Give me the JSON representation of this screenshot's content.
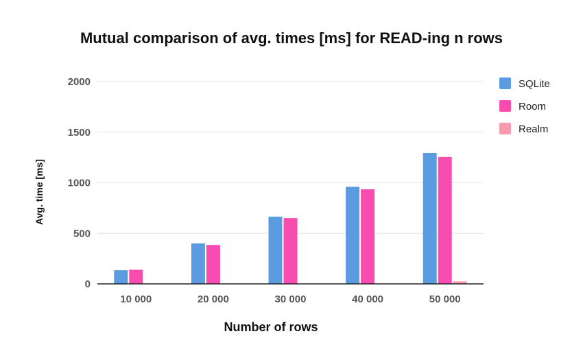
{
  "chart_data": {
    "type": "bar",
    "title": "Mutual comparison of avg. times [ms] for READ-ing n rows",
    "xlabel": "Number of rows",
    "ylabel": "Avg. time [ms]",
    "categories": [
      "10 000",
      "20 000",
      "30 000",
      "40 000",
      "50 000"
    ],
    "ylim": [
      0,
      2000
    ],
    "yticks": [
      0,
      500,
      1000,
      1500,
      2000
    ],
    "grid": true,
    "legend_position": "right",
    "series": [
      {
        "name": "SQLite",
        "color": "#5B9BE0",
        "values": [
          135,
          400,
          665,
          960,
          1295
        ]
      },
      {
        "name": "Room",
        "color": "#F84DB0",
        "values": [
          140,
          385,
          650,
          935,
          1255
        ]
      },
      {
        "name": "Realm",
        "color": "#F79AAE",
        "values": [
          1,
          1,
          2,
          3,
          25
        ]
      }
    ]
  }
}
